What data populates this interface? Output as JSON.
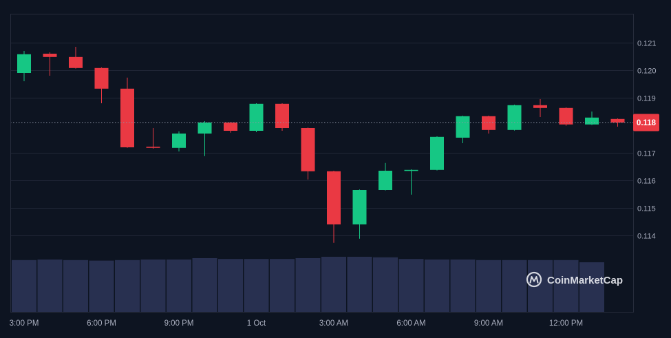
{
  "colors": {
    "background": "#0d1421",
    "up": "#16c784",
    "down": "#ea3943",
    "volume": "#283050",
    "grid": "#212737",
    "axis_text": "#a8adbd",
    "price_line": "#8d93a5",
    "price_badge": "#ea3943",
    "badge_text": "#ffffff",
    "watermark": "#e6e8ee"
  },
  "watermark": {
    "icon": "coinmarketcap-logo-icon",
    "text": "CoinMarketCap"
  },
  "chart_data": {
    "type": "candlestick",
    "grid": "horizontal",
    "ylim": [
      0.111225,
      0.12205
    ],
    "y_ticks": [
      {
        "value": 0.121,
        "label": "0.121"
      },
      {
        "value": 0.12,
        "label": "0.120"
      },
      {
        "value": 0.119,
        "label": "0.119"
      },
      {
        "value": 0.117,
        "label": "0.117"
      },
      {
        "value": 0.116,
        "label": "0.116"
      },
      {
        "value": 0.115,
        "label": "0.115"
      },
      {
        "value": 0.114,
        "label": "0.114"
      }
    ],
    "x_ticks": [
      {
        "label": "3:00 PM",
        "t": "3:00 PM"
      },
      {
        "label": "6:00 PM",
        "t": "6:00 PM"
      },
      {
        "label": "9:00 PM",
        "t": "9:00 PM"
      },
      {
        "label": "1 Oct",
        "t": "12:00 AM"
      },
      {
        "label": "3:00 AM",
        "t": "3:00 AM"
      },
      {
        "label": "6:00 AM",
        "t": "6:00 AM"
      },
      {
        "label": "9:00 AM",
        "t": "9:00 AM"
      },
      {
        "label": "12:00 PM",
        "t": "12:00 PM"
      }
    ],
    "current_price": {
      "value": 0.1181,
      "label": "0.118"
    },
    "candles": [
      {
        "t": "3:00 PM",
        "open": 0.1199,
        "high": 0.1207,
        "low": 0.1196,
        "close": 0.12058,
        "volume": 0.94
      },
      {
        "t": "4:00 PM",
        "open": 0.1206,
        "high": 0.12065,
        "low": 0.1198,
        "close": 0.12048,
        "volume": 0.95
      },
      {
        "t": "5:00 PM",
        "open": 0.12048,
        "high": 0.12085,
        "low": 0.12006,
        "close": 0.12008,
        "volume": 0.94
      },
      {
        "t": "6:00 PM",
        "open": 0.12008,
        "high": 0.1201,
        "low": 0.1188,
        "close": 0.11933,
        "volume": 0.93
      },
      {
        "t": "7:00 PM",
        "open": 0.11933,
        "high": 0.11973,
        "low": 0.11718,
        "close": 0.1172,
        "volume": 0.94
      },
      {
        "t": "8:00 PM",
        "open": 0.11722,
        "high": 0.1179,
        "low": 0.11715,
        "close": 0.11718,
        "volume": 0.95
      },
      {
        "t": "9:00 PM",
        "open": 0.11718,
        "high": 0.11778,
        "low": 0.11705,
        "close": 0.1177,
        "volume": 0.95
      },
      {
        "t": "10:00 PM",
        "open": 0.1177,
        "high": 0.11815,
        "low": 0.11688,
        "close": 0.1181,
        "volume": 0.975
      },
      {
        "t": "11:00 PM",
        "open": 0.1181,
        "high": 0.11812,
        "low": 0.11773,
        "close": 0.1178,
        "volume": 0.96
      },
      {
        "t": "12:00 AM",
        "open": 0.1178,
        "high": 0.1188,
        "low": 0.11775,
        "close": 0.11878,
        "volume": 0.96
      },
      {
        "t": "1:00 AM",
        "open": 0.11878,
        "high": 0.1188,
        "low": 0.1178,
        "close": 0.1179,
        "volume": 0.96
      },
      {
        "t": "2:00 AM",
        "open": 0.1179,
        "high": 0.11792,
        "low": 0.11603,
        "close": 0.11633,
        "volume": 0.975
      },
      {
        "t": "3:00 AM",
        "open": 0.11633,
        "high": 0.11635,
        "low": 0.11373,
        "close": 0.1144,
        "volume": 1.0
      },
      {
        "t": "4:00 AM",
        "open": 0.1144,
        "high": 0.11567,
        "low": 0.11388,
        "close": 0.11565,
        "volume": 1.0
      },
      {
        "t": "5:00 AM",
        "open": 0.11565,
        "high": 0.11663,
        "low": 0.11563,
        "close": 0.11635,
        "volume": 0.99
      },
      {
        "t": "6:00 AM",
        "open": 0.11635,
        "high": 0.1164,
        "low": 0.11548,
        "close": 0.11638,
        "volume": 0.96
      },
      {
        "t": "7:00 AM",
        "open": 0.11638,
        "high": 0.1176,
        "low": 0.11636,
        "close": 0.11758,
        "volume": 0.95
      },
      {
        "t": "8:00 AM",
        "open": 0.11755,
        "high": 0.11835,
        "low": 0.11735,
        "close": 0.11833,
        "volume": 0.95
      },
      {
        "t": "9:00 AM",
        "open": 0.11833,
        "high": 0.11835,
        "low": 0.1177,
        "close": 0.11783,
        "volume": 0.94
      },
      {
        "t": "10:00 AM",
        "open": 0.11783,
        "high": 0.11875,
        "low": 0.11781,
        "close": 0.11873,
        "volume": 0.94
      },
      {
        "t": "11:00 AM",
        "open": 0.11873,
        "high": 0.11895,
        "low": 0.1183,
        "close": 0.11863,
        "volume": 0.94
      },
      {
        "t": "12:00 PM",
        "open": 0.11863,
        "high": 0.11865,
        "low": 0.11798,
        "close": 0.11803,
        "volume": 0.94
      },
      {
        "t": "1:00 PM",
        "open": 0.11803,
        "high": 0.1185,
        "low": 0.11801,
        "close": 0.11828,
        "volume": 0.9
      },
      {
        "t": "2:00 PM",
        "open": 0.11823,
        "high": 0.11825,
        "low": 0.11795,
        "close": 0.1181,
        "volume": null
      }
    ]
  }
}
